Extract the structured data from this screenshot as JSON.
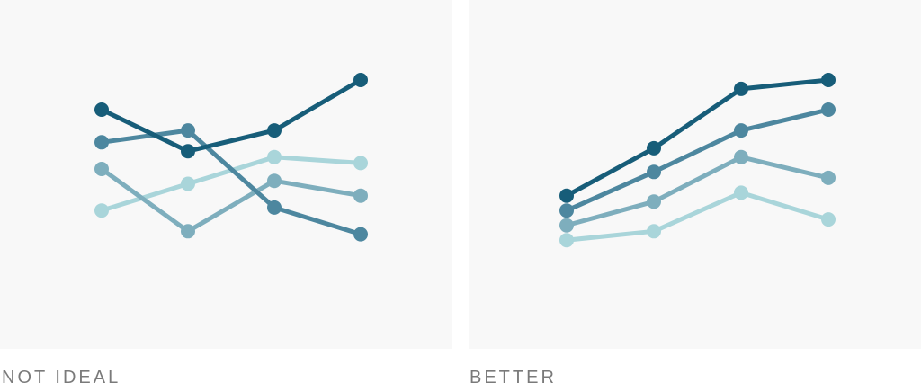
{
  "chart_data": [
    {
      "type": "line",
      "x": [
        1,
        2,
        3,
        4
      ],
      "ylim": [
        0,
        100
      ],
      "grid": false,
      "caption": "NOT IDEAL",
      "series": [
        {
          "values": [
            70,
            56,
            63,
            80
          ],
          "color": "#175d79"
        },
        {
          "values": [
            59,
            63,
            37,
            28
          ],
          "color": "#4d879f"
        },
        {
          "values": [
            50,
            29,
            46,
            41
          ],
          "color": "#7eaebd"
        },
        {
          "values": [
            36,
            45,
            54,
            52
          ],
          "color": "#a9d5da"
        }
      ]
    },
    {
      "type": "line",
      "x": [
        1,
        2,
        3,
        4
      ],
      "ylim": [
        0,
        100
      ],
      "grid": false,
      "caption": "BETTER",
      "series": [
        {
          "values": [
            41,
            57,
            77,
            80
          ],
          "color": "#175d79"
        },
        {
          "values": [
            36,
            49,
            63,
            70
          ],
          "color": "#4d879f"
        },
        {
          "values": [
            31,
            39,
            54,
            47
          ],
          "color": "#7eaebd"
        },
        {
          "values": [
            26,
            29,
            42,
            33
          ],
          "color": "#a9d5da"
        }
      ]
    }
  ]
}
